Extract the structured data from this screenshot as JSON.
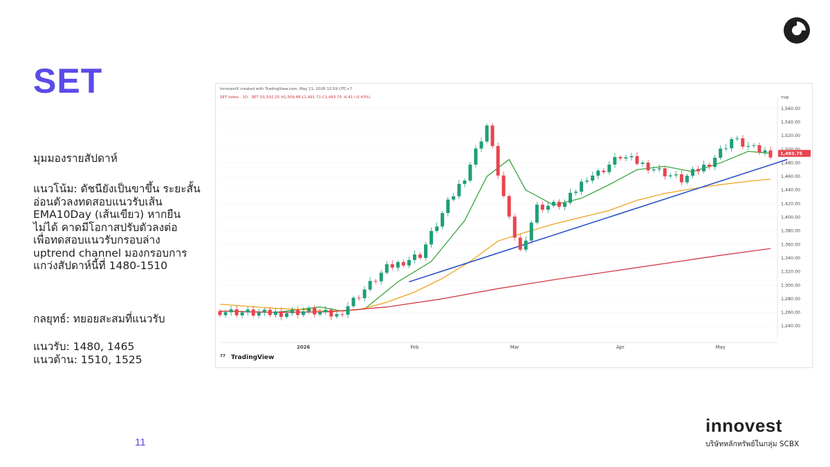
{
  "page": {
    "title": "SET",
    "weekly_view_label": "มุมมองรายสัปดาห์",
    "trend_lines": [
      "แนวโน้ม: ดัชนียังเป็นขาขึ้น ระยะสั้น",
      "อ่อนตัวลงทดสอบแนวรับเส้น",
      "EMA10Day (เส้นเขียว) หากยืน",
      "ไม่ได้ คาดมีโอกาสปรับตัวลงต่อ",
      "เพื่อทดสอบแนวรับกรอบล่าง",
      "uptrend channel มองกรอบการ",
      "แกว่งสัปดาห์นี้ที่ 1480-1510"
    ],
    "strategy": "กลยุทธ์: ทยอยสะสมที่แนวรับ",
    "support": "แนวรับ: 1480, 1465",
    "resistance": "แนวต้าน: 1510, 1525",
    "page_number": "11",
    "brand_name": "innovest",
    "brand_sub": "บริษัทหลักทรัพย์ในกลุ่ม SCBX"
  },
  "chart_data": {
    "type": "line",
    "header": "InnovestX created with TradingView.com, May 11, 2026 12:59 UTC+7",
    "legend": "SET Index · 1D · SET  O1,502.25  H1,509.86  L1,491.71  C1,493.75  -6.41 (-0.43%)",
    "watermark": "TradingView",
    "currency": "THB",
    "last_price_label": "1,493.75",
    "x_labels": [
      "2026",
      "Feb",
      "Mar",
      "Apr",
      "May"
    ],
    "y_ticks": [
      "1,560.00",
      "1,540.00",
      "1,520.00",
      "1,500.00",
      "1,480.00",
      "1,460.00",
      "1,440.00",
      "1,420.00",
      "1,400.00",
      "1,380.00",
      "1,360.00",
      "1,340.00",
      "1,320.00",
      "1,300.00",
      "1,280.00",
      "1,260.00",
      "1,240.00"
    ],
    "ylim": [
      1228,
      1568
    ],
    "n_bars": 100,
    "series": [
      {
        "key": "price",
        "color": "#2e2e2e",
        "x": [
          0,
          8,
          16,
          21,
          24,
          30,
          36,
          41,
          44,
          48,
          52,
          54,
          57,
          62,
          66,
          68,
          72,
          77,
          83,
          88,
          92,
          96,
          99
        ],
        "values": [
          1262,
          1258,
          1262,
          1255,
          1278,
          1325,
          1345,
          1420,
          1460,
          1535,
          1395,
          1350,
          1415,
          1420,
          1460,
          1465,
          1490,
          1475,
          1455,
          1480,
          1515,
          1500,
          1494
        ]
      },
      {
        "key": "ema10",
        "color": "#3aa33a",
        "x": [
          0,
          10,
          18,
          22,
          26,
          32,
          38,
          44,
          48,
          52,
          55,
          60,
          65,
          70,
          75,
          80,
          85,
          90,
          95,
          99
        ],
        "values": [
          1262,
          1260,
          1268,
          1262,
          1265,
          1305,
          1335,
          1395,
          1460,
          1485,
          1440,
          1418,
          1428,
          1448,
          1470,
          1475,
          1467,
          1480,
          1497,
          1494
        ]
      },
      {
        "key": "ema_mid",
        "color": "#f0a21e",
        "x": [
          0,
          10,
          20,
          25,
          30,
          35,
          40,
          45,
          50,
          55,
          60,
          65,
          70,
          75,
          80,
          85,
          90,
          95,
          99
        ],
        "values": [
          1272,
          1266,
          1262,
          1264,
          1275,
          1290,
          1310,
          1335,
          1365,
          1378,
          1390,
          1400,
          1410,
          1425,
          1435,
          1442,
          1448,
          1453,
          1456
        ]
      },
      {
        "key": "ema_long",
        "color": "#d23a46",
        "x": [
          0,
          10,
          20,
          30,
          40,
          50,
          60,
          70,
          80,
          90,
          99
        ],
        "values": [
          1262,
          1260,
          1261,
          1268,
          1280,
          1295,
          1308,
          1320,
          1332,
          1344,
          1354
        ]
      },
      {
        "key": "trendline",
        "color": "#2851c8",
        "x": [
          34,
          102
        ],
        "values": [
          1305,
          1485
        ]
      }
    ]
  }
}
